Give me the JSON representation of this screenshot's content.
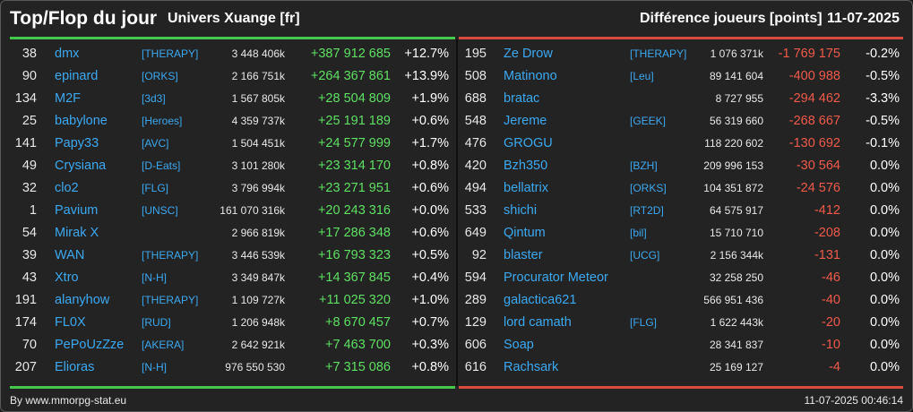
{
  "header": {
    "title": "Top/Flop du jour",
    "universe": "Univers Xuange [fr]",
    "metric": "Différence joueurs [points]",
    "date": "11-07-2025"
  },
  "colors": {
    "background": "#232323",
    "player_link": "#3ba9f2",
    "gain": "#5ee062",
    "loss": "#f05a4a",
    "top_accent": "#46c94a",
    "flop_accent": "#d94a3f"
  },
  "top": [
    {
      "rank": "38",
      "player": "dmx",
      "alliance": "[THERAPY]",
      "score": "3 448 406k",
      "diff": "+387 912 685",
      "pct": "+12.7%"
    },
    {
      "rank": "90",
      "player": "epinard",
      "alliance": "[ORKS]",
      "score": "2 166 751k",
      "diff": "+264 367 861",
      "pct": "+13.9%"
    },
    {
      "rank": "134",
      "player": "M2F",
      "alliance": "[3d3]",
      "score": "1 567 805k",
      "diff": "+28 504 809",
      "pct": "+1.9%"
    },
    {
      "rank": "25",
      "player": "babylone",
      "alliance": "[Heroes]",
      "score": "4 359 737k",
      "diff": "+25 191 189",
      "pct": "+0.6%"
    },
    {
      "rank": "141",
      "player": "Papy33",
      "alliance": "[AVC]",
      "score": "1 504 451k",
      "diff": "+24 577 999",
      "pct": "+1.7%"
    },
    {
      "rank": "49",
      "player": "Crysiana",
      "alliance": "[D-Eats]",
      "score": "3 101 280k",
      "diff": "+23 314 170",
      "pct": "+0.8%"
    },
    {
      "rank": "32",
      "player": "clo2",
      "alliance": "[FLG]",
      "score": "3 796 994k",
      "diff": "+23 271 951",
      "pct": "+0.6%"
    },
    {
      "rank": "1",
      "player": "Pavium",
      "alliance": "[UNSC]",
      "score": "161 070 316k",
      "diff": "+20 243 316",
      "pct": "+0.0%"
    },
    {
      "rank": "54",
      "player": "Mirak X",
      "alliance": "",
      "score": "2 966 819k",
      "diff": "+17 286 348",
      "pct": "+0.6%"
    },
    {
      "rank": "39",
      "player": "WAN",
      "alliance": "[THERAPY]",
      "score": "3 446 539k",
      "diff": "+16 793 323",
      "pct": "+0.5%"
    },
    {
      "rank": "43",
      "player": "Xtro",
      "alliance": "[N-H]",
      "score": "3 349 847k",
      "diff": "+14 367 845",
      "pct": "+0.4%"
    },
    {
      "rank": "191",
      "player": "alanyhow",
      "alliance": "[THERAPY]",
      "score": "1 109 727k",
      "diff": "+11 025 320",
      "pct": "+1.0%"
    },
    {
      "rank": "174",
      "player": "FL0X",
      "alliance": "[RUD]",
      "score": "1 206 948k",
      "diff": "+8 670 457",
      "pct": "+0.7%"
    },
    {
      "rank": "70",
      "player": "PePoUzZze",
      "alliance": "[AKERA]",
      "score": "2 642 921k",
      "diff": "+7 463 700",
      "pct": "+0.3%"
    },
    {
      "rank": "207",
      "player": "Elioras",
      "alliance": "[N-H]",
      "score": "976 550 530",
      "diff": "+7 315 086",
      "pct": "+0.8%"
    }
  ],
  "flop": [
    {
      "rank": "195",
      "player": "Ze Drow",
      "alliance": "[THERAPY]",
      "score": "1 076 371k",
      "diff": "-1 769 175",
      "pct": "-0.2%"
    },
    {
      "rank": "508",
      "player": "Matinono",
      "alliance": "[Leu]",
      "score": "89 141 604",
      "diff": "-400 988",
      "pct": "-0.5%"
    },
    {
      "rank": "688",
      "player": "bratac",
      "alliance": "",
      "score": "8 727 955",
      "diff": "-294 462",
      "pct": "-3.3%"
    },
    {
      "rank": "548",
      "player": "Jereme",
      "alliance": "[GEEK]",
      "score": "56 319 660",
      "diff": "-268 667",
      "pct": "-0.5%"
    },
    {
      "rank": "476",
      "player": "GROGU",
      "alliance": "",
      "score": "118 220 602",
      "diff": "-130 692",
      "pct": "-0.1%"
    },
    {
      "rank": "420",
      "player": "Bzh350",
      "alliance": "[BZH]",
      "score": "209 996 153",
      "diff": "-30 564",
      "pct": "0.0%"
    },
    {
      "rank": "494",
      "player": "bellatrix",
      "alliance": "[ORKS]",
      "score": "104 351 872",
      "diff": "-24 576",
      "pct": "0.0%"
    },
    {
      "rank": "533",
      "player": "shichi",
      "alliance": "[RT2D]",
      "score": "64 575 917",
      "diff": "-412",
      "pct": "0.0%"
    },
    {
      "rank": "649",
      "player": "Qintum",
      "alliance": "[bil]",
      "score": "15 710 710",
      "diff": "-208",
      "pct": "0.0%"
    },
    {
      "rank": "92",
      "player": "blaster",
      "alliance": "[UCG]",
      "score": "2 156 344k",
      "diff": "-131",
      "pct": "0.0%"
    },
    {
      "rank": "594",
      "player": "Procurator Meteor",
      "alliance": "",
      "score": "32 258 250",
      "diff": "-46",
      "pct": "0.0%"
    },
    {
      "rank": "289",
      "player": "galactica621",
      "alliance": "",
      "score": "566 951 436",
      "diff": "-40",
      "pct": "0.0%"
    },
    {
      "rank": "129",
      "player": "lord camath",
      "alliance": "[FLG]",
      "score": "1 622 443k",
      "diff": "-20",
      "pct": "0.0%"
    },
    {
      "rank": "606",
      "player": "Soap",
      "alliance": "",
      "score": "28 341 837",
      "diff": "-10",
      "pct": "0.0%"
    },
    {
      "rank": "616",
      "player": "Rachsark",
      "alliance": "",
      "score": "25 169 127",
      "diff": "-4",
      "pct": "0.0%"
    }
  ],
  "footer": {
    "credit": "By www.mmorpg-stat.eu",
    "timestamp": "11-07-2025 00:46:14"
  }
}
